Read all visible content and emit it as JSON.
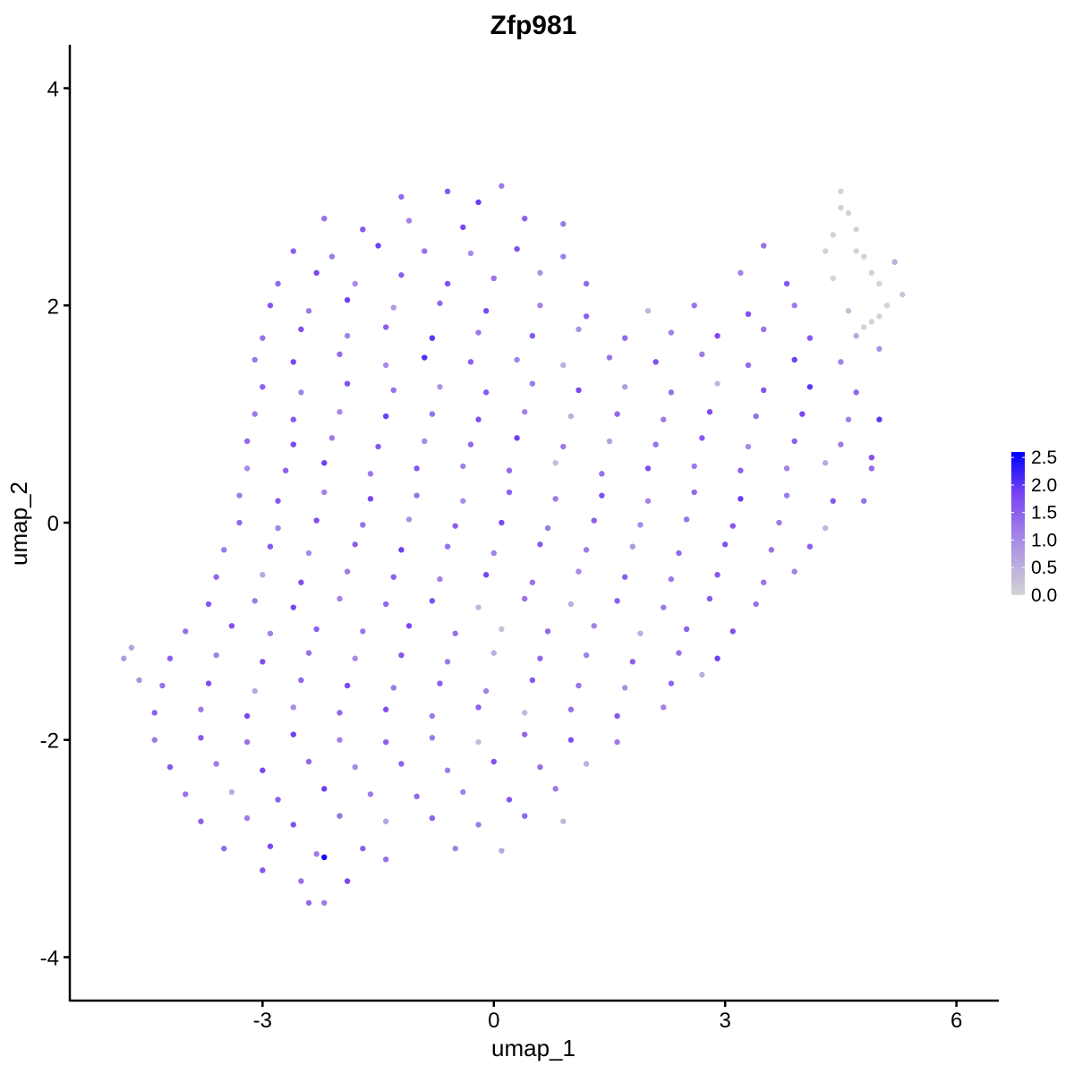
{
  "chart_data": {
    "type": "scatter",
    "title": "Zfp981",
    "xlabel": "umap_1",
    "ylabel": "umap_2",
    "xlim": [
      -5.5,
      6.55
    ],
    "ylim": [
      -4.4,
      4.4
    ],
    "x_ticks": [
      "-3",
      "0",
      "3",
      "6"
    ],
    "x_tick_values": [
      -3,
      0,
      3,
      6
    ],
    "y_ticks": [
      "-4",
      "-2",
      "0",
      "2",
      "4"
    ],
    "y_tick_values": [
      -4,
      -2,
      0,
      2,
      4
    ],
    "grid": false,
    "legend": {
      "placement": "right",
      "type": "colorbar",
      "labels": [
        "0.0",
        "0.5",
        "1.0",
        "1.5",
        "2.0",
        "2.5"
      ],
      "values": [
        0,
        0.5,
        1.0,
        1.5,
        2.0,
        2.5
      ],
      "range": [
        0,
        2.6
      ],
      "low_color": "#D3D3D3",
      "high_color": "#0000FF"
    },
    "points_note_fields": [
      "x",
      "y",
      "expression"
    ],
    "points": [
      [
        -1.2,
        3.0,
        1.4
      ],
      [
        -0.6,
        3.05,
        1.6
      ],
      [
        0.1,
        3.1,
        1.2
      ],
      [
        -0.2,
        2.95,
        1.9
      ],
      [
        -2.2,
        2.8,
        1.3
      ],
      [
        -1.7,
        2.7,
        1.6
      ],
      [
        -1.1,
        2.78,
        1.1
      ],
      [
        -0.4,
        2.72,
        1.8
      ],
      [
        0.4,
        2.8,
        1.5
      ],
      [
        0.9,
        2.75,
        1.2
      ],
      [
        4.5,
        2.9,
        0
      ],
      [
        4.7,
        2.7,
        0
      ],
      [
        -2.6,
        2.5,
        1.5
      ],
      [
        -2.1,
        2.45,
        1.2
      ],
      [
        -1.5,
        2.55,
        1.9
      ],
      [
        -0.9,
        2.5,
        1.3
      ],
      [
        -0.3,
        2.48,
        1.0
      ],
      [
        0.3,
        2.52,
        1.7
      ],
      [
        0.9,
        2.45,
        1.1
      ],
      [
        3.5,
        2.55,
        1.3
      ],
      [
        4.3,
        2.5,
        0
      ],
      [
        4.8,
        2.45,
        0
      ],
      [
        5.2,
        2.4,
        0.5
      ],
      [
        -2.8,
        2.2,
        1.4
      ],
      [
        -2.3,
        2.3,
        1.8
      ],
      [
        -1.8,
        2.2,
        1.0
      ],
      [
        -1.2,
        2.28,
        1.5
      ],
      [
        -0.6,
        2.2,
        1.7
      ],
      [
        0,
        2.25,
        1.3
      ],
      [
        0.6,
        2.3,
        0.9
      ],
      [
        1.2,
        2.2,
        1.4
      ],
      [
        3.2,
        2.3,
        1.1
      ],
      [
        3.8,
        2.2,
        1.6
      ],
      [
        4.4,
        2.25,
        0
      ],
      [
        5.0,
        2.2,
        0
      ],
      [
        5.3,
        2.1,
        0.2
      ],
      [
        -2.9,
        2.0,
        1.6
      ],
      [
        -2.4,
        1.95,
        1.2
      ],
      [
        -1.9,
        2.05,
        1.9
      ],
      [
        -1.3,
        1.98,
        0.8
      ],
      [
        -0.7,
        2.02,
        1.4
      ],
      [
        -0.1,
        1.95,
        1.8
      ],
      [
        0.6,
        2.0,
        1.1
      ],
      [
        1.2,
        1.9,
        1.5
      ],
      [
        2.0,
        1.95,
        0.4
      ],
      [
        2.6,
        2.0,
        1.3
      ],
      [
        3.3,
        1.92,
        1.7
      ],
      [
        3.9,
        2.0,
        1.2
      ],
      [
        4.6,
        1.95,
        0.3
      ],
      [
        5.0,
        1.9,
        0
      ],
      [
        4.8,
        1.8,
        0
      ],
      [
        -3.0,
        1.7,
        1.3
      ],
      [
        -2.5,
        1.78,
        1.7
      ],
      [
        -1.9,
        1.72,
        1.1
      ],
      [
        -1.4,
        1.8,
        1.5
      ],
      [
        -0.8,
        1.7,
        2.0
      ],
      [
        -0.2,
        1.75,
        1.2
      ],
      [
        0.5,
        1.72,
        1.6
      ],
      [
        1.1,
        1.78,
        0.9
      ],
      [
        1.7,
        1.7,
        1.4
      ],
      [
        2.3,
        1.75,
        1.1
      ],
      [
        2.9,
        1.72,
        1.8
      ],
      [
        3.5,
        1.78,
        1.3
      ],
      [
        4.1,
        1.7,
        1.6
      ],
      [
        4.7,
        1.72,
        0.6
      ],
      [
        5.0,
        1.6,
        0.9
      ],
      [
        -3.1,
        1.5,
        1.2
      ],
      [
        -2.6,
        1.48,
        1.8
      ],
      [
        -2.0,
        1.55,
        1.4
      ],
      [
        -1.4,
        1.45,
        1.0
      ],
      [
        -0.9,
        1.52,
        2.1
      ],
      [
        -0.3,
        1.48,
        1.5
      ],
      [
        0.3,
        1.5,
        1.1
      ],
      [
        0.9,
        1.45,
        0.5
      ],
      [
        1.5,
        1.52,
        1.3
      ],
      [
        2.1,
        1.48,
        1.7
      ],
      [
        2.7,
        1.55,
        1.2
      ],
      [
        3.3,
        1.45,
        1.4
      ],
      [
        3.9,
        1.5,
        1.9
      ],
      [
        4.5,
        1.48,
        1.1
      ],
      [
        -3.0,
        1.25,
        1.5
      ],
      [
        -2.5,
        1.2,
        1.1
      ],
      [
        -1.9,
        1.28,
        1.7
      ],
      [
        -1.3,
        1.22,
        1.3
      ],
      [
        -0.7,
        1.25,
        0.9
      ],
      [
        -0.1,
        1.2,
        1.6
      ],
      [
        0.5,
        1.28,
        1.2
      ],
      [
        1.1,
        1.22,
        1.8
      ],
      [
        1.7,
        1.25,
        0.8
      ],
      [
        2.3,
        1.2,
        1.3
      ],
      [
        2.9,
        1.28,
        0.4
      ],
      [
        3.5,
        1.22,
        1.6
      ],
      [
        4.1,
        1.25,
        2.0
      ],
      [
        4.7,
        1.2,
        1.4
      ],
      [
        -3.1,
        1.0,
        1.2
      ],
      [
        -2.6,
        0.95,
        1.6
      ],
      [
        -2.0,
        1.02,
        1.0
      ],
      [
        -1.4,
        0.98,
        1.9
      ],
      [
        -0.8,
        1.0,
        1.3
      ],
      [
        -0.2,
        0.95,
        1.7
      ],
      [
        0.4,
        1.02,
        1.1
      ],
      [
        1.0,
        0.98,
        0.5
      ],
      [
        1.6,
        1.0,
        1.4
      ],
      [
        2.2,
        0.95,
        1.2
      ],
      [
        2.8,
        1.02,
        1.7
      ],
      [
        3.4,
        0.98,
        1.3
      ],
      [
        4.0,
        1.0,
        1.8
      ],
      [
        4.6,
        0.95,
        1.1
      ],
      [
        5.0,
        0.95,
        2.0
      ],
      [
        -3.2,
        0.75,
        1.4
      ],
      [
        -2.6,
        0.72,
        1.8
      ],
      [
        -2.1,
        0.78,
        1.2
      ],
      [
        -1.5,
        0.7,
        1.6
      ],
      [
        -0.9,
        0.75,
        1.0
      ],
      [
        -0.3,
        0.72,
        1.4
      ],
      [
        0.3,
        0.78,
        1.9
      ],
      [
        0.9,
        0.7,
        1.2
      ],
      [
        1.5,
        0.75,
        0.7
      ],
      [
        2.1,
        0.72,
        1.3
      ],
      [
        2.7,
        0.78,
        1.6
      ],
      [
        3.3,
        0.7,
        1.0
      ],
      [
        3.9,
        0.75,
        1.5
      ],
      [
        4.5,
        0.72,
        1.2
      ],
      [
        4.9,
        0.6,
        1.7
      ],
      [
        -3.2,
        0.5,
        1.0
      ],
      [
        -2.7,
        0.48,
        1.5
      ],
      [
        -2.2,
        0.55,
        1.9
      ],
      [
        -1.6,
        0.45,
        1.2
      ],
      [
        -1.0,
        0.5,
        1.6
      ],
      [
        -0.4,
        0.52,
        1.1
      ],
      [
        0.2,
        0.48,
        1.4
      ],
      [
        0.8,
        0.55,
        0.3
      ],
      [
        1.4,
        0.45,
        1.3
      ],
      [
        2.0,
        0.5,
        1.7
      ],
      [
        2.6,
        0.52,
        1.2
      ],
      [
        3.2,
        0.48,
        1.5
      ],
      [
        3.8,
        0.5,
        1.1
      ],
      [
        4.3,
        0.55,
        0.6
      ],
      [
        4.9,
        0.5,
        1.4
      ],
      [
        -3.3,
        0.25,
        1.2
      ],
      [
        -2.8,
        0.2,
        1.6
      ],
      [
        -2.2,
        0.28,
        1.1
      ],
      [
        -1.6,
        0.22,
        1.8
      ],
      [
        -1.0,
        0.25,
        1.3
      ],
      [
        -0.4,
        0.2,
        1.0
      ],
      [
        0.2,
        0.28,
        1.5
      ],
      [
        0.8,
        0.22,
        1.2
      ],
      [
        1.4,
        0.25,
        1.7
      ],
      [
        2.0,
        0.2,
        1.1
      ],
      [
        2.6,
        0.28,
        1.4
      ],
      [
        3.2,
        0.22,
        1.9
      ],
      [
        3.8,
        0.25,
        1.2
      ],
      [
        4.4,
        0.2,
        1.6
      ],
      [
        -3.3,
        0,
        1.4
      ],
      [
        -2.8,
        -0.05,
        1.1
      ],
      [
        -2.3,
        0.02,
        1.7
      ],
      [
        -1.7,
        -0.02,
        1.3
      ],
      [
        -1.1,
        0.03,
        0.9
      ],
      [
        -0.5,
        -0.03,
        1.5
      ],
      [
        0.1,
        0.0,
        1.8
      ],
      [
        0.7,
        -0.05,
        1.2
      ],
      [
        1.3,
        0.02,
        1.5
      ],
      [
        1.9,
        -0.02,
        1.0
      ],
      [
        2.5,
        0.03,
        1.3
      ],
      [
        3.1,
        -0.03,
        1.6
      ],
      [
        3.7,
        0.0,
        1.2
      ],
      [
        4.3,
        -0.05,
        0.4
      ],
      [
        4.8,
        0.2,
        1.3
      ],
      [
        -3.5,
        -0.25,
        1.2
      ],
      [
        -2.9,
        -0.22,
        1.6
      ],
      [
        -2.4,
        -0.28,
        1.0
      ],
      [
        -1.8,
        -0.2,
        1.5
      ],
      [
        -1.2,
        -0.25,
        1.9
      ],
      [
        -0.6,
        -0.22,
        1.3
      ],
      [
        0.0,
        -0.28,
        1.1
      ],
      [
        0.6,
        -0.2,
        1.6
      ],
      [
        1.2,
        -0.25,
        1.2
      ],
      [
        1.8,
        -0.22,
        0.8
      ],
      [
        2.4,
        -0.28,
        1.4
      ],
      [
        3.0,
        -0.2,
        1.7
      ],
      [
        3.6,
        -0.25,
        1.3
      ],
      [
        4.1,
        -0.22,
        1.5
      ],
      [
        -3.6,
        -0.5,
        1.4
      ],
      [
        -3.0,
        -0.48,
        0.6
      ],
      [
        -2.5,
        -0.55,
        1.7
      ],
      [
        -1.9,
        -0.45,
        1.2
      ],
      [
        -1.3,
        -0.5,
        1.5
      ],
      [
        -0.7,
        -0.52,
        1.1
      ],
      [
        -0.1,
        -0.48,
        1.8
      ],
      [
        0.5,
        -0.55,
        1.3
      ],
      [
        1.1,
        -0.45,
        1.0
      ],
      [
        1.7,
        -0.5,
        1.5
      ],
      [
        2.3,
        -0.52,
        1.2
      ],
      [
        2.9,
        -0.48,
        1.6
      ],
      [
        3.5,
        -0.55,
        1.3
      ],
      [
        3.9,
        -0.45,
        1.1
      ],
      [
        -3.7,
        -0.75,
        1.6
      ],
      [
        -3.1,
        -0.72,
        1.2
      ],
      [
        -2.6,
        -0.78,
        1.8
      ],
      [
        -2.0,
        -0.7,
        1.1
      ],
      [
        -1.4,
        -0.75,
        1.4
      ],
      [
        -0.8,
        -0.72,
        1.7
      ],
      [
        -0.2,
        -0.78,
        0.4
      ],
      [
        0.4,
        -0.7,
        1.3
      ],
      [
        1.0,
        -0.75,
        0.5
      ],
      [
        1.6,
        -0.72,
        1.5
      ],
      [
        2.2,
        -0.78,
        1.2
      ],
      [
        2.8,
        -0.7,
        1.6
      ],
      [
        3.4,
        -0.75,
        1.3
      ],
      [
        -4.0,
        -1.0,
        1.3
      ],
      [
        -3.4,
        -0.95,
        1.7
      ],
      [
        -2.9,
        -1.02,
        1.1
      ],
      [
        -2.3,
        -0.98,
        1.5
      ],
      [
        -1.7,
        -1.0,
        1.2
      ],
      [
        -1.1,
        -0.95,
        1.8
      ],
      [
        -0.5,
        -1.02,
        1.3
      ],
      [
        0.1,
        -0.98,
        0.3
      ],
      [
        0.7,
        -1.0,
        1.4
      ],
      [
        1.3,
        -0.95,
        1.1
      ],
      [
        1.9,
        -1.02,
        0.5
      ],
      [
        2.5,
        -0.98,
        1.5
      ],
      [
        3.1,
        -1.0,
        1.7
      ],
      [
        -4.8,
        -1.25,
        0.8
      ],
      [
        -4.7,
        -1.15,
        0.7
      ],
      [
        -4.6,
        -1.45,
        0.9
      ],
      [
        -4.2,
        -1.25,
        1.5
      ],
      [
        -3.6,
        -1.22,
        1.1
      ],
      [
        -3.0,
        -1.28,
        1.7
      ],
      [
        -2.4,
        -1.2,
        1.3
      ],
      [
        -1.8,
        -1.25,
        1.0
      ],
      [
        -1.2,
        -1.22,
        1.6
      ],
      [
        -0.6,
        -1.28,
        1.2
      ],
      [
        0.0,
        -1.2,
        0.5
      ],
      [
        0.6,
        -1.25,
        1.4
      ],
      [
        1.2,
        -1.22,
        1.1
      ],
      [
        1.8,
        -1.28,
        1.5
      ],
      [
        2.4,
        -1.2,
        1.3
      ],
      [
        2.9,
        -1.25,
        1.9
      ],
      [
        -4.3,
        -1.5,
        1.3
      ],
      [
        -3.7,
        -1.48,
        1.7
      ],
      [
        -3.1,
        -1.55,
        0.6
      ],
      [
        -2.5,
        -1.45,
        1.4
      ],
      [
        -1.9,
        -1.5,
        1.8
      ],
      [
        -1.3,
        -1.52,
        1.2
      ],
      [
        -0.7,
        -1.48,
        1.5
      ],
      [
        -0.1,
        -1.55,
        1.1
      ],
      [
        0.5,
        -1.45,
        1.6
      ],
      [
        1.1,
        -1.5,
        1.3
      ],
      [
        1.7,
        -1.52,
        0.9
      ],
      [
        2.3,
        -1.48,
        1.4
      ],
      [
        2.7,
        -1.4,
        0.5
      ],
      [
        -4.4,
        -1.75,
        1.5
      ],
      [
        -3.8,
        -1.72,
        1.2
      ],
      [
        -3.2,
        -1.78,
        1.8
      ],
      [
        -2.6,
        -1.7,
        1.0
      ],
      [
        -2.0,
        -1.75,
        1.4
      ],
      [
        -1.4,
        -1.72,
        1.7
      ],
      [
        -0.8,
        -1.78,
        1.2
      ],
      [
        -0.2,
        -1.7,
        1.5
      ],
      [
        0.4,
        -1.75,
        0.4
      ],
      [
        1.0,
        -1.72,
        1.3
      ],
      [
        1.6,
        -1.78,
        1.6
      ],
      [
        2.2,
        -1.7,
        1.1
      ],
      [
        -4.4,
        -2.0,
        1.2
      ],
      [
        -3.8,
        -1.98,
        1.6
      ],
      [
        -3.2,
        -2.02,
        1.3
      ],
      [
        -2.6,
        -1.95,
        1.9
      ],
      [
        -2.0,
        -2.0,
        1.1
      ],
      [
        -1.4,
        -2.02,
        1.5
      ],
      [
        -0.8,
        -1.98,
        1.2
      ],
      [
        -0.2,
        -2.02,
        0.3
      ],
      [
        0.4,
        -1.95,
        1.4
      ],
      [
        1.0,
        -2.0,
        1.7
      ],
      [
        1.6,
        -2.02,
        1.2
      ],
      [
        -4.2,
        -2.25,
        1.6
      ],
      [
        -3.6,
        -2.22,
        1.2
      ],
      [
        -3.0,
        -2.28,
        1.8
      ],
      [
        -2.4,
        -2.2,
        1.4
      ],
      [
        -1.8,
        -2.25,
        1.0
      ],
      [
        -1.2,
        -2.22,
        1.5
      ],
      [
        -0.6,
        -2.28,
        1.2
      ],
      [
        0.0,
        -2.2,
        1.7
      ],
      [
        0.6,
        -2.25,
        1.3
      ],
      [
        1.2,
        -2.22,
        0.5
      ],
      [
        -4.0,
        -2.5,
        1.3
      ],
      [
        -3.4,
        -2.48,
        0.5
      ],
      [
        -2.8,
        -2.55,
        1.5
      ],
      [
        -2.2,
        -2.45,
        1.9
      ],
      [
        -1.6,
        -2.5,
        1.2
      ],
      [
        -1.0,
        -2.52,
        1.4
      ],
      [
        -0.4,
        -2.48,
        1.1
      ],
      [
        0.2,
        -2.55,
        1.6
      ],
      [
        0.8,
        -2.45,
        1.2
      ],
      [
        -3.8,
        -2.75,
        1.5
      ],
      [
        -3.2,
        -2.72,
        1.2
      ],
      [
        -2.6,
        -2.78,
        1.7
      ],
      [
        -2.0,
        -2.7,
        1.3
      ],
      [
        -1.4,
        -2.75,
        0.7
      ],
      [
        -0.8,
        -2.72,
        1.5
      ],
      [
        -0.2,
        -2.78,
        1.2
      ],
      [
        0.4,
        -2.7,
        1.4
      ],
      [
        0.9,
        -2.75,
        0.4
      ],
      [
        -3.5,
        -3.0,
        1.4
      ],
      [
        -2.9,
        -2.98,
        1.8
      ],
      [
        -2.3,
        -3.05,
        1.2
      ],
      [
        -1.7,
        -3.0,
        1.5
      ],
      [
        -1.4,
        -3.1,
        1.3
      ],
      [
        -0.5,
        -3.0,
        1.1
      ],
      [
        0.1,
        -3.02,
        0.6
      ],
      [
        -3.0,
        -3.2,
        1.6
      ],
      [
        -2.5,
        -3.3,
        1.3
      ],
      [
        -2.2,
        -3.08,
        2.5
      ],
      [
        -1.9,
        -3.3,
        1.8
      ],
      [
        -2.4,
        -3.5,
        1.4
      ],
      [
        -2.2,
        -3.5,
        1.2
      ],
      [
        4.5,
        3.05,
        0
      ],
      [
        4.6,
        2.85,
        0
      ],
      [
        4.4,
        2.65,
        0
      ],
      [
        4.9,
        2.3,
        0
      ],
      [
        5.1,
        2.0,
        0
      ],
      [
        4.9,
        1.85,
        0
      ],
      [
        5.2,
        2.4,
        0
      ],
      [
        4.7,
        2.5,
        0
      ]
    ]
  }
}
